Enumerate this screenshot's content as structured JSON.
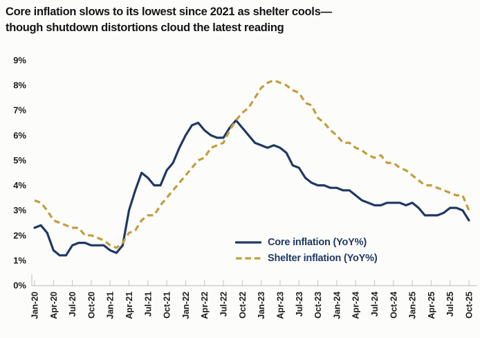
{
  "title": {
    "line1": "Core inflation slows to its lowest since 2021 as shelter cools—",
    "line2": "though shutdown distortions cloud the latest reading"
  },
  "chart_data": {
    "type": "line",
    "start_month": "Jan-20",
    "end_month": "Oct-25",
    "frequency": "monthly",
    "grid": false,
    "legend_position": "inside-bottom-center",
    "ylim": [
      0,
      9
    ],
    "y_tick_labels": [
      "0%",
      "1%",
      "2%",
      "3%",
      "4%",
      "5%",
      "6%",
      "7%",
      "8%",
      "9%"
    ],
    "x_tick_labels": [
      "Jan-20",
      "Apr-20",
      "Jul-20",
      "Oct-20",
      "Jan-21",
      "Apr-21",
      "Jul-21",
      "Oct-21",
      "Jan-22",
      "Apr-22",
      "Jul-22",
      "Oct-22",
      "Jan-23",
      "Apr-23",
      "Jul-23",
      "Oct-23",
      "Jan-24",
      "Apr-24",
      "Jul-24",
      "Oct-24",
      "Jan-25",
      "Apr-25",
      "Jul-25",
      "Oct-25"
    ],
    "x_tick_step_months": 3,
    "series": [
      {
        "name": "Core inflation (YoY%)",
        "color": "#1f3864",
        "style": "solid",
        "values": [
          2.3,
          2.4,
          2.1,
          1.4,
          1.2,
          1.2,
          1.6,
          1.7,
          1.7,
          1.6,
          1.6,
          1.6,
          1.4,
          1.3,
          1.6,
          3.0,
          3.8,
          4.5,
          4.3,
          4.0,
          4.0,
          4.6,
          4.9,
          5.5,
          6.0,
          6.4,
          6.5,
          6.2,
          6.0,
          5.9,
          5.9,
          6.3,
          6.6,
          6.3,
          6.0,
          5.7,
          5.6,
          5.5,
          5.6,
          5.5,
          5.3,
          4.8,
          4.7,
          4.3,
          4.1,
          4.0,
          4.0,
          3.9,
          3.9,
          3.8,
          3.8,
          3.6,
          3.4,
          3.3,
          3.2,
          3.2,
          3.3,
          3.3,
          3.3,
          3.2,
          3.3,
          3.1,
          2.8,
          2.8,
          2.8,
          2.9,
          3.1,
          3.1,
          3.0,
          2.6
        ]
      },
      {
        "name": "Shelter inflation (YoY%)",
        "color": "#c59c3b",
        "style": "dashed",
        "values": [
          3.4,
          3.3,
          3.0,
          2.6,
          2.5,
          2.4,
          2.3,
          2.3,
          2.0,
          2.0,
          1.9,
          1.8,
          1.6,
          1.5,
          1.7,
          2.1,
          2.2,
          2.6,
          2.8,
          2.8,
          3.2,
          3.5,
          3.8,
          4.1,
          4.4,
          4.7,
          5.0,
          5.1,
          5.5,
          5.6,
          5.7,
          6.2,
          6.6,
          6.9,
          7.1,
          7.5,
          7.9,
          8.1,
          8.2,
          8.1,
          8.0,
          7.8,
          7.7,
          7.3,
          7.2,
          6.7,
          6.5,
          6.2,
          6.0,
          5.7,
          5.7,
          5.5,
          5.4,
          5.2,
          5.1,
          5.2,
          4.9,
          4.9,
          4.7,
          4.6,
          4.4,
          4.2,
          4.0,
          4.0,
          3.9,
          3.8,
          3.7,
          3.6,
          3.6,
          3.0
        ]
      }
    ]
  },
  "colors": {
    "axis": "#c6c6c6",
    "title_text": "#141414",
    "axis_text": "#1c1c1c",
    "legend_text": "#1f3864",
    "background": "#fcfcfb"
  }
}
